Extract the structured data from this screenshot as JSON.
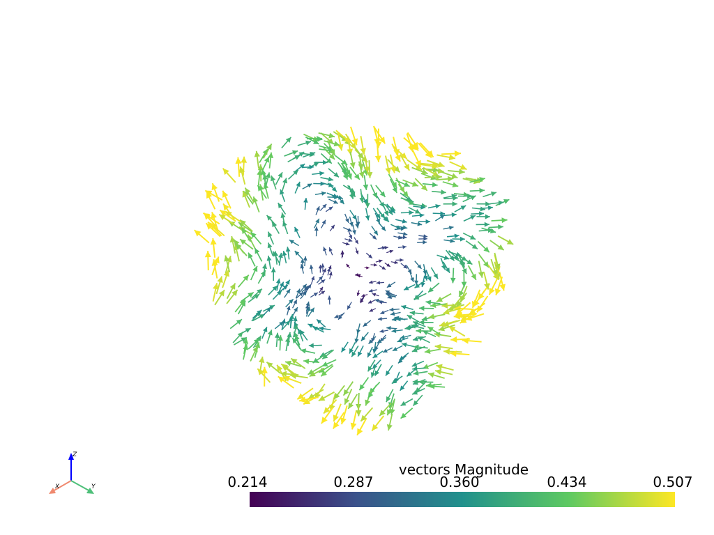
{
  "scalar_bar": {
    "title": "vectors Magnitude",
    "ticks": [
      0.214,
      0.287,
      {
        "value": 0.36,
        "label": "0.360"
      },
      0.434,
      0.507
    ]
  },
  "axes_widget": {
    "x_label": "X",
    "y_label": "Y",
    "z_label": "Z"
  }
}
